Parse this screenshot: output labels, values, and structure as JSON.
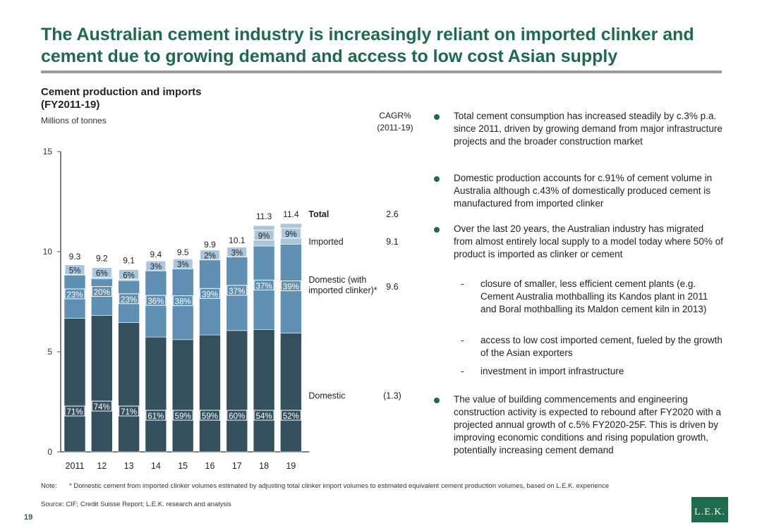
{
  "title": "The Australian cement industry is increasingly reliant on imported clinker and cement due to growing demand and access to low cost Asian supply",
  "chart_title": "Cement production and imports",
  "chart_subtitle": "(FY2011-19)",
  "chart_unit": "Millions of tonnes",
  "cagr_header": "CAGR%",
  "cagr_period": "(2011-19)",
  "colors": {
    "domestic": "#34505f",
    "clinker": "#5f8fb3",
    "imported": "#a9c6dc",
    "accent": "#1d6b4a"
  },
  "chart_data": {
    "type": "bar",
    "stacked": true,
    "categories": [
      "2011",
      "12",
      "13",
      "14",
      "15",
      "16",
      "17",
      "18",
      "19"
    ],
    "ylim": [
      0,
      15
    ],
    "yticks": [
      "0",
      "5",
      "10",
      "15"
    ],
    "totals": [
      9.3,
      9.2,
      9.1,
      9.4,
      9.5,
      9.9,
      10.1,
      11.3,
      11.4
    ],
    "total_labels": [
      "9.3",
      "9.2",
      "9.1",
      "9.4",
      "9.5",
      "9.9",
      "10.1",
      "11.3",
      "11.4"
    ],
    "series": [
      {
        "name": "Domestic",
        "color": "#34505f",
        "shares": [
          71,
          74,
          71,
          61,
          59,
          59,
          60,
          54,
          52
        ],
        "labels": [
          "71%",
          "74%",
          "71%",
          "61%",
          "59%",
          "59%",
          "60%",
          "54%",
          "52%"
        ],
        "cagr": "(1.3)"
      },
      {
        "name": "Domestic (with imported clinker)*",
        "color": "#5f8fb3",
        "shares": [
          23,
          20,
          23,
          36,
          38,
          39,
          37,
          37,
          39
        ],
        "labels": [
          "23%",
          "20%",
          "23%",
          "36%",
          "38%",
          "39%",
          "37%",
          "37%",
          "39%"
        ],
        "cagr": "9.6"
      },
      {
        "name": "Imported",
        "color": "#a9c6dc",
        "shares": [
          5,
          6,
          6,
          3,
          3,
          2,
          3,
          9,
          9
        ],
        "labels": [
          "5%",
          "6%",
          "6%",
          "3%",
          "3%",
          "2%",
          "3%",
          "9%",
          "9%"
        ],
        "cagr": "9.1"
      }
    ],
    "total_series": {
      "name": "Total",
      "cagr": "2.6"
    },
    "legend_labels": {
      "total": "Total",
      "imported": "Imported",
      "clinker_line1": "Domestic (with",
      "clinker_line2": "imported clinker)*",
      "domestic": "Domestic"
    }
  },
  "bullets": [
    "Total cement consumption has increased steadily by c.3% p.a. since 2011, driven by growing demand from major infrastructure projects and the broader construction market",
    "Domestic production accounts for c.91% of cement volume in Australia although c.43% of domestically produced cement is manufactured from imported clinker",
    "Over the last 20 years, the Australian industry has migrated from almost entirely local supply to a model today where 50% of product is imported as clinker or cement",
    "The value of building commencements and engineering construction activity is expected to rebound after FY2020 with a projected annual growth of c.5% FY2020-25F. This is driven by improving economic conditions and rising population growth, potentially increasing cement demand"
  ],
  "sub_bullets": [
    "closure of smaller, less efficient cement plants (e.g. Cement Australia mothballing its Kandos plant in 2011 and Boral mothballing its Maldon cement kiln in 2013)",
    "access to low cost imported cement, fueled by the growth of the Asian exporters",
    "investment in import infrastructure"
  ],
  "dash": "-",
  "note_label": "Note:",
  "note_text": "* Domestic cement from imported clinker volumes estimated by adjusting total clinker import volumes to estimated equivalent cement production volumes, based on L.E.K. experience",
  "source": "Source: CIF; Credit Suisse Report; L.E.K. research and analysis",
  "page_number": "19",
  "logo_text": "L.E.K."
}
